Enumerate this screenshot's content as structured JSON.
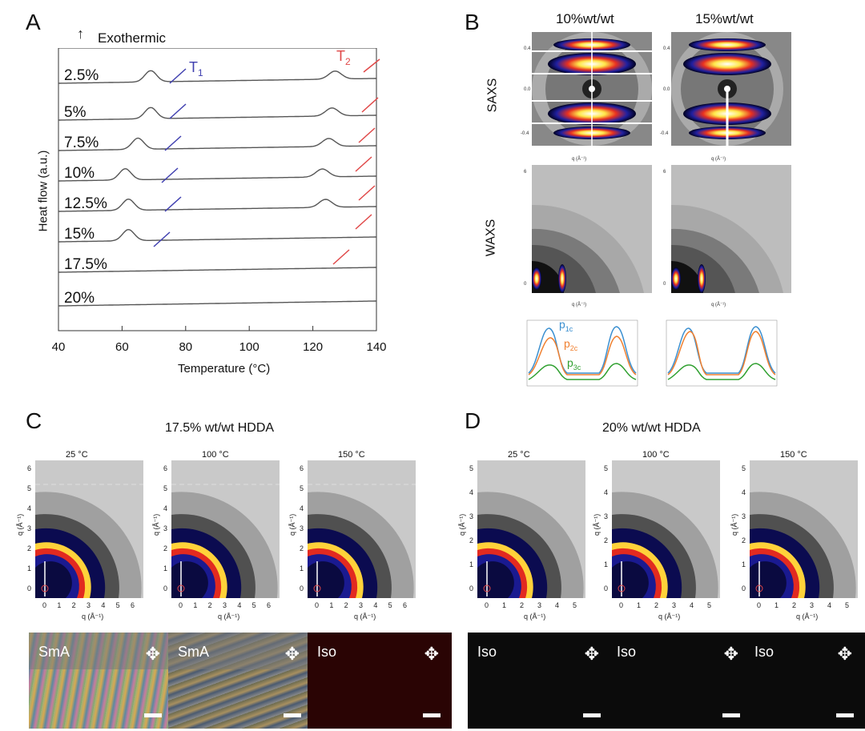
{
  "panels": {
    "a": "A",
    "b": "B",
    "c": "C",
    "d": "D"
  },
  "panelA": {
    "exothermic_label": "Exothermic",
    "ylabel": "Heat flow (a.u.)",
    "xlabel": "Temperature (°C)",
    "t1_label": "T",
    "t1_sub": "1",
    "t2_label": "T",
    "t2_sub": "2",
    "xticks": [
      "40",
      "60",
      "80",
      "100",
      "120",
      "140"
    ]
  },
  "panelB": {
    "col1": "10%wt/wt",
    "col2": "15%wt/wt",
    "row_saxs": "SAXS",
    "row_waxs": "WAXS",
    "p1_label": "p",
    "p1_sub": "1c",
    "p2_label": "p",
    "p2_sub": "2c",
    "p3_label": "p",
    "p3_sub": "3c"
  },
  "panelC": {
    "title": "17.5% wt/wt HDDA",
    "temps": [
      "25 °C",
      "100 °C",
      "150 °C"
    ],
    "xlabel": "q (Å⁻¹)",
    "ylabel": "q (Å⁻¹)",
    "pol_labels": [
      "SmA",
      "SmA",
      "Iso"
    ]
  },
  "panelD": {
    "title": "20% wt/wt HDDA",
    "temps": [
      "25 °C",
      "100 °C",
      "150 °C"
    ],
    "xlabel": "q (Å⁻¹)",
    "ylabel": "q (Å⁻¹)",
    "pol_labels": [
      "Iso",
      "Iso",
      "Iso"
    ]
  },
  "chart_data": {
    "type": "line",
    "title": "",
    "xlabel": "Temperature (°C)",
    "ylabel": "Heat flow (a.u.)",
    "xlim": [
      40,
      140
    ],
    "series": [
      {
        "name": "2.5%",
        "t1": 69,
        "t2": 127
      },
      {
        "name": "5%",
        "t1": 69,
        "t2": 126
      },
      {
        "name": "7.5%",
        "t1": 65,
        "t2": 125
      },
      {
        "name": "10%",
        "t1": 61,
        "t2": 123
      },
      {
        "name": "12.5%",
        "t1": 62,
        "t2": 124
      },
      {
        "name": "15%",
        "t1": 62,
        "t2": null
      },
      {
        "name": "17.5%",
        "t1": null,
        "t2": null
      },
      {
        "name": "20%",
        "t1": null,
        "t2": null
      }
    ]
  }
}
